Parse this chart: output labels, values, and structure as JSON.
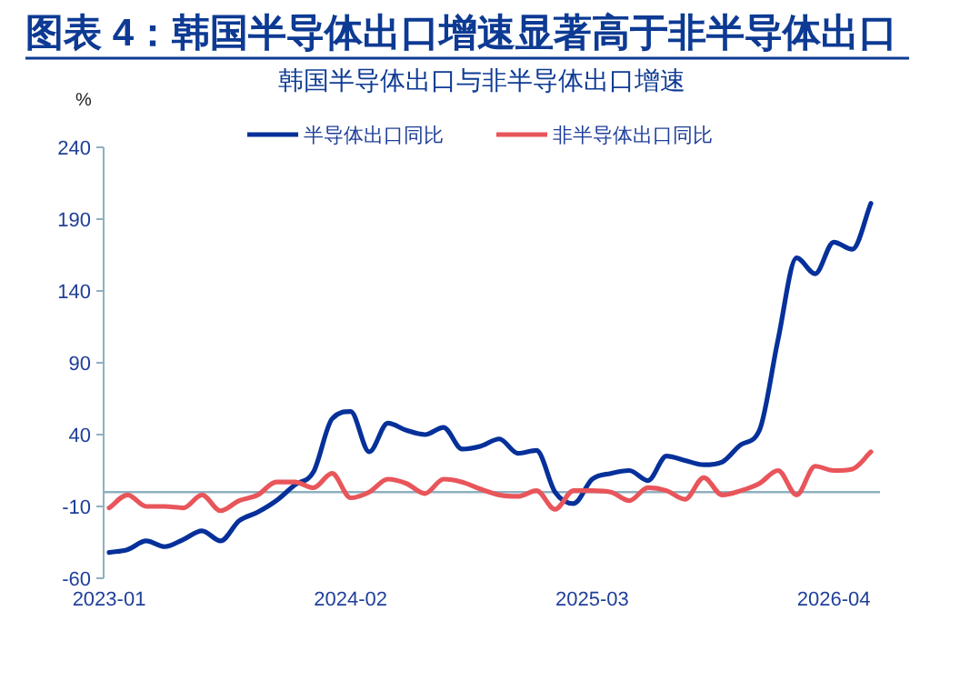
{
  "chart_data": {
    "type": "line",
    "title": "图表 4：韩国半导体出口增速显著高于非半导体出口",
    "subtitle": "韩国半导体出口与非半导体出口增速",
    "ylabel": "%",
    "categories": [
      "2023-01",
      null,
      null,
      null,
      null,
      null,
      null,
      null,
      null,
      null,
      null,
      null,
      null,
      "2024-02",
      null,
      null,
      null,
      null,
      null,
      null,
      null,
      null,
      null,
      null,
      null,
      null,
      "2025-03",
      null,
      null,
      null,
      null,
      null,
      null,
      null,
      null,
      null,
      null,
      null,
      null,
      "2026-04",
      null,
      null
    ],
    "series": [
      {
        "name": "半导体出口同比",
        "color": "#06309a",
        "values": [
          -42,
          -40,
          -34,
          -38,
          -33,
          -27,
          -34,
          -20,
          -14,
          -6,
          5,
          14,
          51,
          56,
          28,
          48,
          43,
          40,
          45,
          30,
          32,
          37,
          27,
          29,
          0,
          -8,
          9,
          13,
          15,
          8,
          25,
          22,
          19,
          21,
          33,
          43,
          106,
          163,
          152,
          174,
          169,
          201
        ]
      },
      {
        "name": "非半导体出口同比",
        "color": "#e8555a",
        "values": [
          -11,
          -2,
          -10,
          -10,
          -11,
          -2,
          -13,
          -6,
          -2,
          7,
          7,
          3,
          13,
          -4,
          0,
          9,
          6,
          -1,
          9,
          7,
          2,
          -2,
          -3,
          1,
          -12,
          1,
          1,
          0,
          -6,
          3,
          1,
          -5,
          10,
          -2,
          1,
          6,
          15,
          -2,
          18,
          15,
          16,
          28
        ]
      }
    ],
    "ylim": [
      -60,
      240
    ],
    "yticks": [
      -60,
      -10,
      40,
      90,
      140,
      190,
      240
    ],
    "ref_lines": [
      {
        "axis": "y",
        "value": 0,
        "color": "#8fb0c0"
      }
    ],
    "grid": false,
    "legend": "top",
    "line_style": "solid",
    "marker": "none"
  }
}
